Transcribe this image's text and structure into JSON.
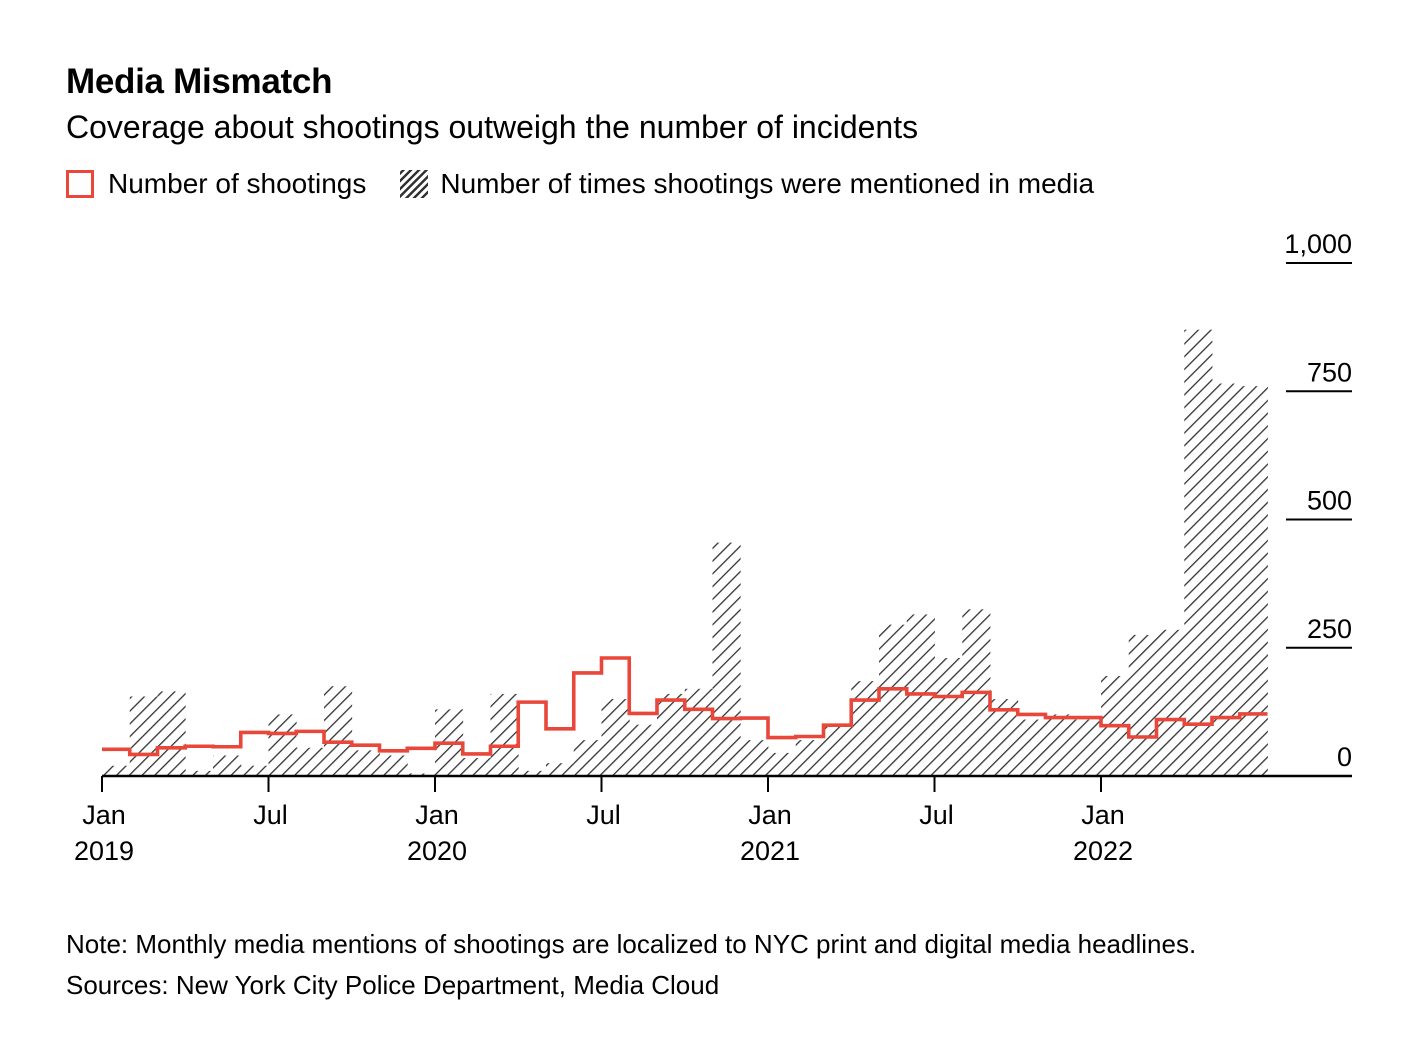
{
  "chart_data": {
    "type": "bar",
    "title": "Media Mismatch",
    "subtitle": "Coverage about shootings outweigh the number of incidents",
    "legend": [
      {
        "label": "Number of shootings",
        "style": "line",
        "color": "#e8473a"
      },
      {
        "label": "Number of times shootings were mentioned in media",
        "style": "hatched-bar",
        "color": "#333333"
      }
    ],
    "months": [
      "2019-01",
      "2019-02",
      "2019-03",
      "2019-04",
      "2019-05",
      "2019-06",
      "2019-07",
      "2019-08",
      "2019-09",
      "2019-10",
      "2019-11",
      "2019-12",
      "2020-01",
      "2020-02",
      "2020-03",
      "2020-04",
      "2020-05",
      "2020-06",
      "2020-07",
      "2020-08",
      "2020-09",
      "2020-10",
      "2020-11",
      "2020-12",
      "2021-01",
      "2021-02",
      "2021-03",
      "2021-04",
      "2021-05",
      "2021-06",
      "2021-07",
      "2021-08",
      "2021-09",
      "2021-10",
      "2021-11",
      "2021-12",
      "2022-01",
      "2022-02",
      "2022-03",
      "2022-04",
      "2022-05",
      "2022-06"
    ],
    "series": [
      {
        "name": "Number of times shootings were mentioned in media",
        "type": "bar",
        "values": [
          20,
          155,
          165,
          10,
          40,
          20,
          120,
          55,
          175,
          50,
          40,
          5,
          130,
          35,
          160,
          10,
          25,
          70,
          150,
          100,
          160,
          170,
          455,
          70,
          45,
          70,
          100,
          185,
          295,
          315,
          230,
          325,
          150,
          110,
          120,
          110,
          195,
          275,
          285,
          870,
          765,
          760
        ]
      },
      {
        "name": "Number of shootings",
        "type": "step",
        "values": [
          52,
          42,
          55,
          58,
          57,
          85,
          83,
          87,
          66,
          60,
          49,
          54,
          64,
          43,
          58,
          144,
          92,
          201,
          230,
          122,
          148,
          130,
          112,
          113,
          75,
          77,
          99,
          148,
          170,
          160,
          155,
          163,
          129,
          120,
          114,
          114,
          98,
          76,
          110,
          101,
          114,
          121
        ]
      }
    ],
    "x_ticks": [
      {
        "month": "2019-01",
        "label": "Jan",
        "sublabel": "2019"
      },
      {
        "month": "2019-07",
        "label": "Jul",
        "sublabel": ""
      },
      {
        "month": "2020-01",
        "label": "Jan",
        "sublabel": "2020"
      },
      {
        "month": "2020-07",
        "label": "Jul",
        "sublabel": ""
      },
      {
        "month": "2021-01",
        "label": "Jan",
        "sublabel": "2021"
      },
      {
        "month": "2021-07",
        "label": "Jul",
        "sublabel": ""
      },
      {
        "month": "2022-01",
        "label": "Jan",
        "sublabel": "2022"
      }
    ],
    "y_ticks": [
      {
        "value": 0,
        "label": "0"
      },
      {
        "value": 250,
        "label": "250"
      },
      {
        "value": 500,
        "label": "500"
      },
      {
        "value": 750,
        "label": "750"
      },
      {
        "value": 1000,
        "label": "1,000"
      }
    ],
    "ylim": [
      0,
      1000
    ],
    "grid": false,
    "legend_position": "top-left",
    "colors": {
      "line": "#e8473a",
      "hatch": "#333333",
      "axis": "#000000"
    }
  },
  "note": "Note: Monthly media mentions of shootings are localized to NYC print and digital media headlines.",
  "source": "Sources: New York City Police Department, Media Cloud"
}
